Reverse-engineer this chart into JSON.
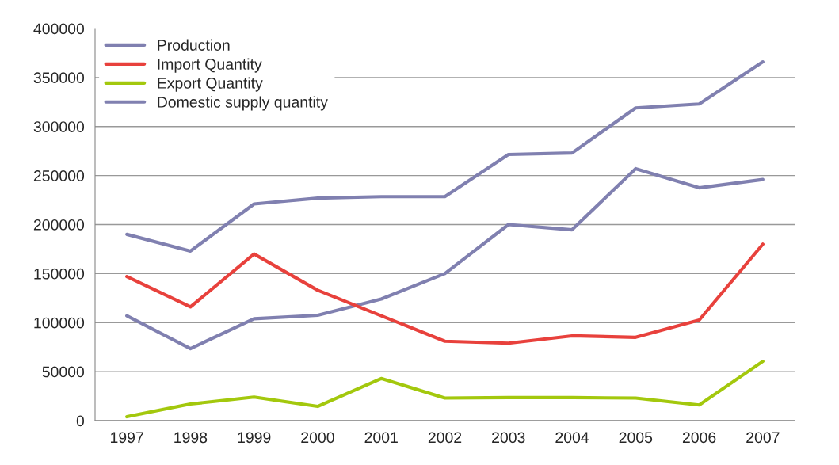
{
  "chart_data": {
    "type": "line",
    "categories": [
      "1997",
      "1998",
      "1999",
      "2000",
      "2001",
      "2002",
      "2003",
      "2004",
      "2005",
      "2006",
      "2007"
    ],
    "series": [
      {
        "name": "Production",
        "color": "#8080b0",
        "values": [
          107000,
          73500,
          104000,
          107500,
          124000,
          150000,
          200000,
          194700,
          257000,
          237500,
          246000
        ]
      },
      {
        "name": "Import Quantity",
        "color": "#e8413c",
        "values": [
          147000,
          116000,
          170000,
          133000,
          107000,
          81000,
          79000,
          86500,
          85000,
          102600,
          180000
        ]
      },
      {
        "name": "Export Quantity",
        "color": "#a3c80d",
        "values": [
          4000,
          17000,
          24000,
          14500,
          43000,
          23000,
          23500,
          23500,
          23000,
          16000,
          60500
        ]
      },
      {
        "name": "Domestic supply quantity",
        "color": "#8080b0",
        "values": [
          190000,
          173000,
          221000,
          227000,
          228500,
          228500,
          271500,
          273000,
          319000,
          323000,
          366000
        ]
      }
    ],
    "ylim": [
      0,
      400000
    ],
    "yticks": [
      0,
      50000,
      100000,
      150000,
      200000,
      250000,
      300000,
      350000,
      400000
    ],
    "grid": "y",
    "legend": "top left",
    "marker": "none",
    "line_style": "solid"
  }
}
